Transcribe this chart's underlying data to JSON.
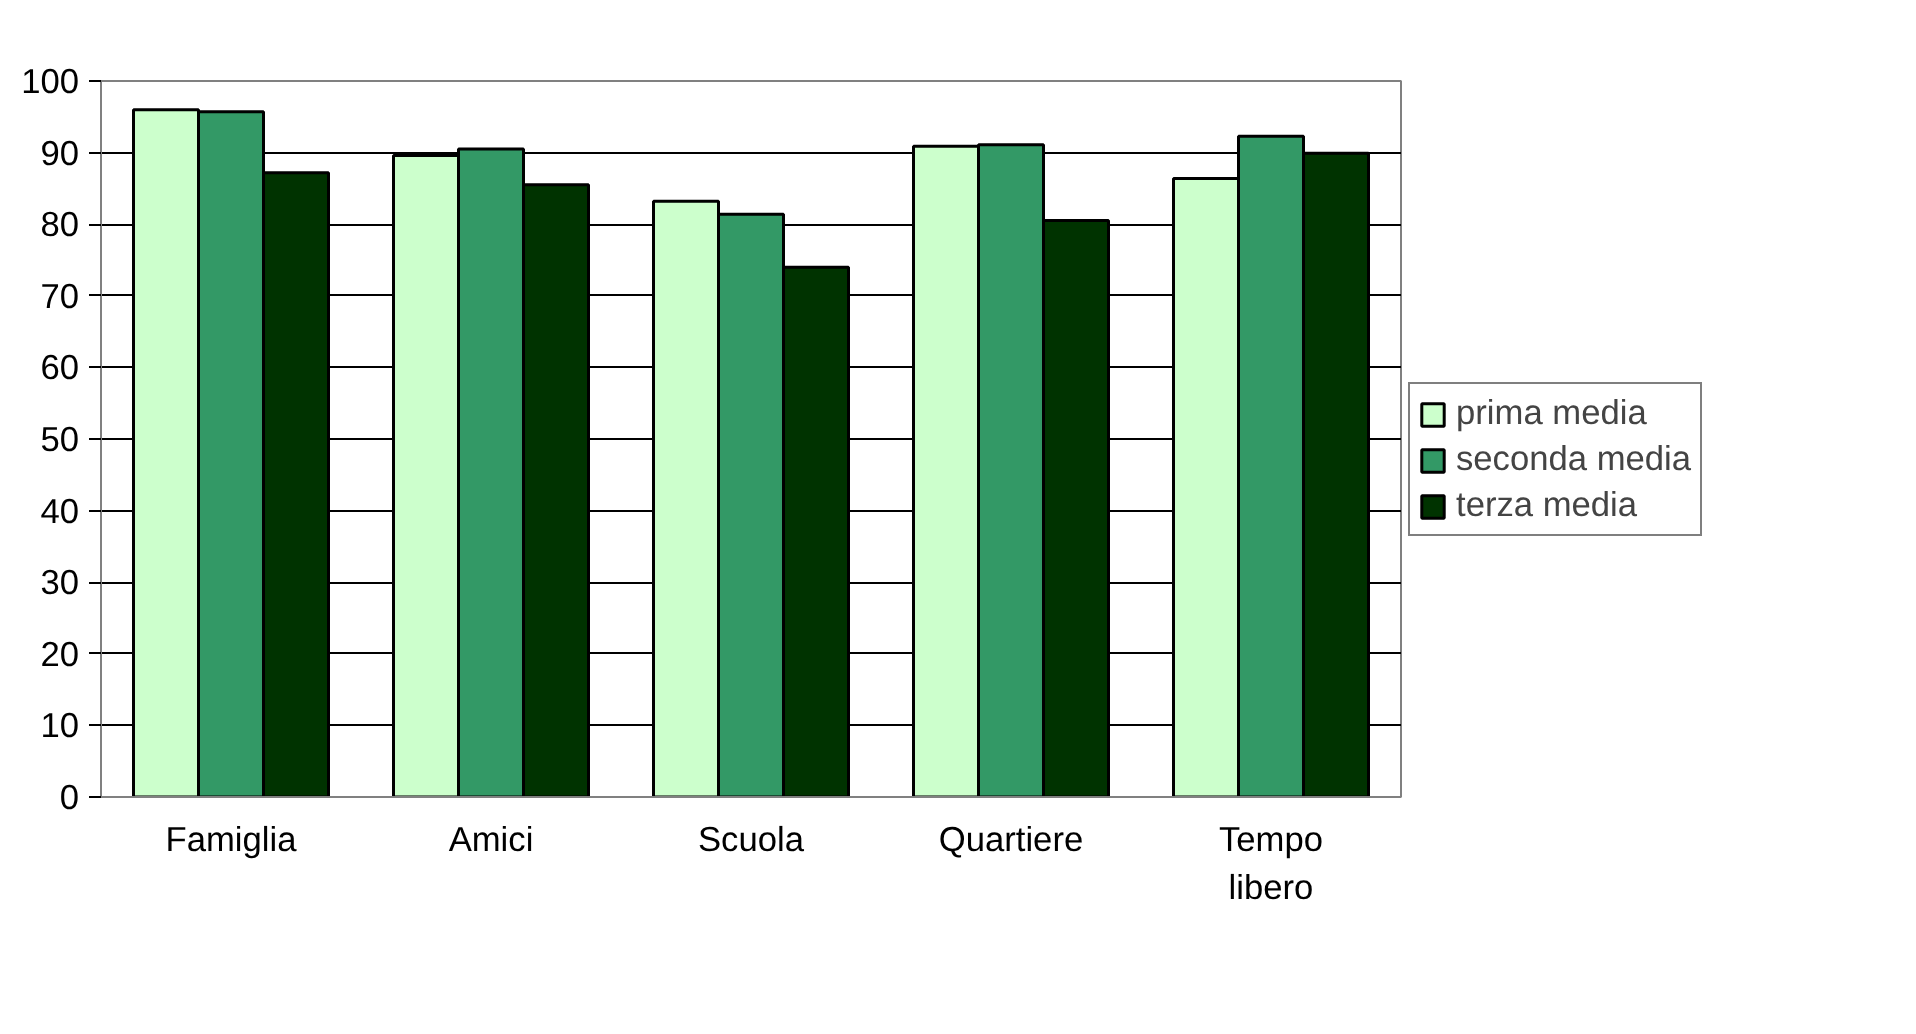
{
  "chart_data": {
    "type": "bar",
    "categories": [
      "Famiglia",
      "Amici",
      "Scuola",
      "Quartiere",
      "Tempo\nlibero"
    ],
    "series": [
      {
        "name": "prima media",
        "color": "#ccffcc",
        "values": [
          96,
          89.6,
          83.2,
          90.9,
          86.4
        ]
      },
      {
        "name": "seconda media",
        "color": "#339966",
        "values": [
          95.7,
          90.5,
          81.4,
          91.1,
          92.3
        ]
      },
      {
        "name": "terza media",
        "color": "#003300",
        "values": [
          87.2,
          85.5,
          74,
          80.5,
          89.9
        ]
      }
    ],
    "ylim": [
      0,
      100
    ],
    "yticks": [
      0,
      10,
      20,
      30,
      40,
      50,
      60,
      70,
      80,
      90,
      100
    ],
    "grid": "y",
    "legend": "right"
  }
}
